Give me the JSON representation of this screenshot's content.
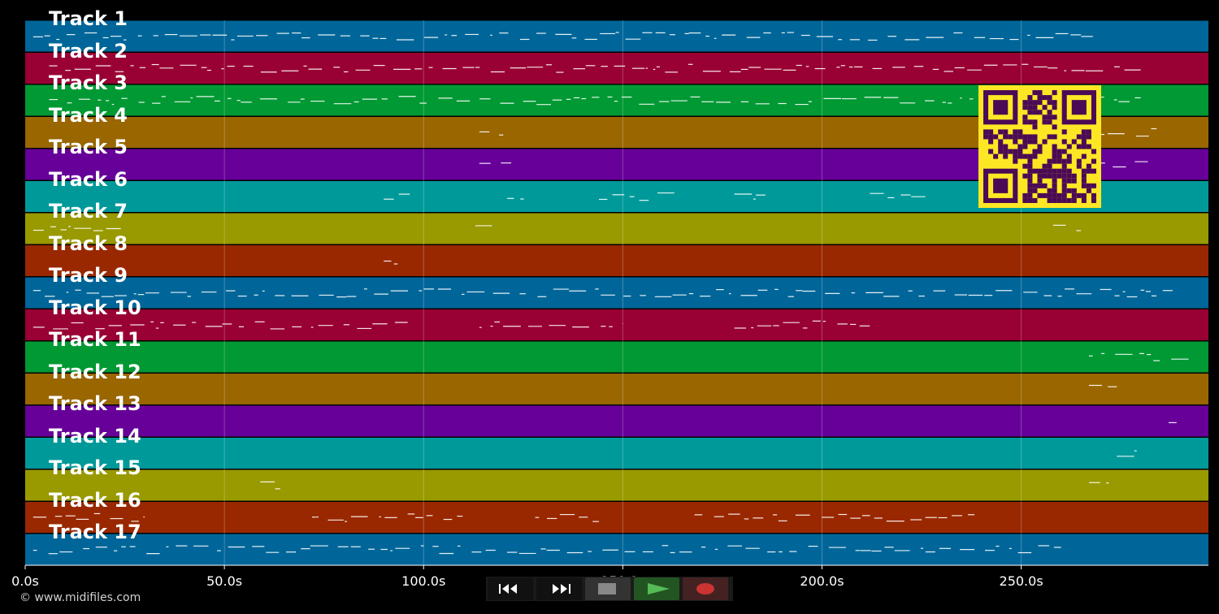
{
  "tracks": [
    {
      "label": "Track 1",
      "color": "#006699"
    },
    {
      "label": "Track 2",
      "color": "#990033"
    },
    {
      "label": "Track 3",
      "color": "#009933"
    },
    {
      "label": "Track 4",
      "color": "#996600"
    },
    {
      "label": "Track 5",
      "color": "#660099"
    },
    {
      "label": "Track 6",
      "color": "#009999"
    },
    {
      "label": "Track 7",
      "color": "#999900"
    },
    {
      "label": "Track 8",
      "color": "#992800"
    },
    {
      "label": "Track 9",
      "color": "#006699"
    },
    {
      "label": "Track 10",
      "color": "#990033"
    },
    {
      "label": "Track 11",
      "color": "#009933"
    },
    {
      "label": "Track 12",
      "color": "#996600"
    },
    {
      "label": "Track 13",
      "color": "#660099"
    },
    {
      "label": "Track 14",
      "color": "#009999"
    },
    {
      "label": "Track 15",
      "color": "#999900"
    },
    {
      "label": "Track 16",
      "color": "#992800"
    },
    {
      "label": "Track 17",
      "color": "#006699"
    }
  ],
  "time_axis": {
    "max_seconds": 297,
    "ticks": [
      {
        "value": 0,
        "label": "0.0s"
      },
      {
        "value": 50,
        "label": "50.0s"
      },
      {
        "value": 100,
        "label": "100.0s"
      },
      {
        "value": 150,
        "label": "150.0s"
      },
      {
        "value": 200,
        "label": "200.0s"
      },
      {
        "value": 250,
        "label": "250.0s"
      }
    ]
  },
  "transport": [
    {
      "name": "rewind",
      "icon": "rewind-icon",
      "color": "#ffffff",
      "bg": "#111111"
    },
    {
      "name": "fast-forward",
      "icon": "fast-forward-icon",
      "color": "#ffffff",
      "bg": "#111111"
    },
    {
      "name": "stop",
      "icon": "stop-icon",
      "color": "#888888",
      "bg": "#333333"
    },
    {
      "name": "play",
      "icon": "play-icon",
      "color": "#55bb55",
      "bg": "#225522"
    },
    {
      "name": "record",
      "icon": "record-icon",
      "color": "#cc3333",
      "bg": "#442222"
    }
  ],
  "qr_color": {
    "fg": "#4b0a55",
    "bg": "#fde725"
  },
  "copyright": "© www.midifiles.com"
}
